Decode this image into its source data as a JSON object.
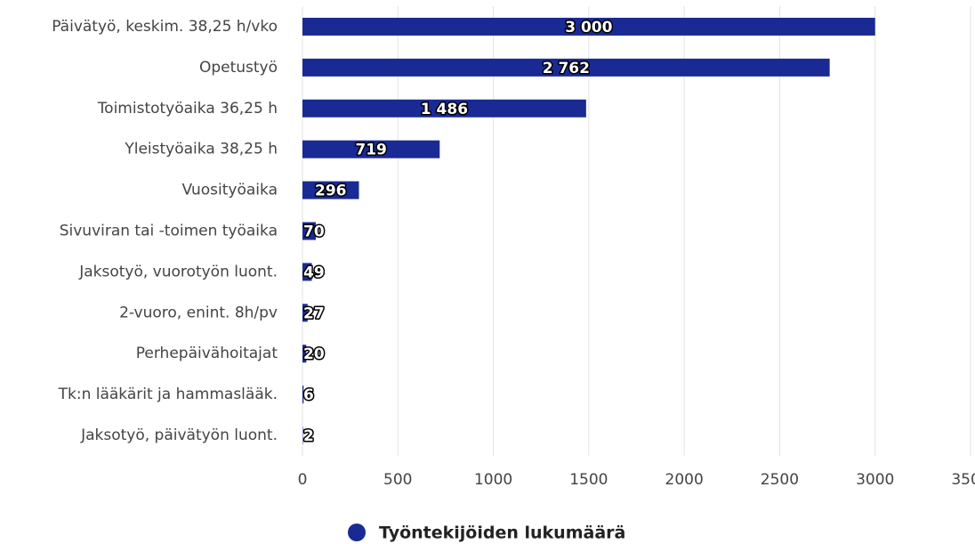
{
  "chart_data": {
    "type": "bar",
    "orientation": "horizontal",
    "categories": [
      "Päivätyö, keskim. 38,25 h/vko",
      "Opetustyö",
      "Toimistotyöaika 36,25 h",
      "Yleistyöaika 38,25 h",
      "Vuosityöaika",
      "Sivuviran tai -toimen työaika",
      "Jaksotyö, vuorotyön luont.",
      "2-vuoro, enint. 8h/pv",
      "Perhepäivähoitajat",
      "Tk:n lääkärit ja hammaslääk.",
      "Jaksotyö, päivätyön luont."
    ],
    "series": [
      {
        "name": "Työntekijöiden lukumäärä",
        "color": "#1a2a94",
        "values": [
          3000,
          2762,
          1486,
          719,
          296,
          70,
          49,
          27,
          20,
          6,
          2
        ],
        "value_labels": [
          "3 000",
          "2 762",
          "1 486",
          "719",
          "296",
          "70",
          "49",
          "27",
          "20",
          "6",
          "2"
        ]
      }
    ],
    "xlim": [
      0,
      3500
    ],
    "xticks": [
      0,
      500,
      1000,
      1500,
      2000,
      2500,
      3000,
      3500
    ],
    "grid": true,
    "legend": "bottom"
  }
}
